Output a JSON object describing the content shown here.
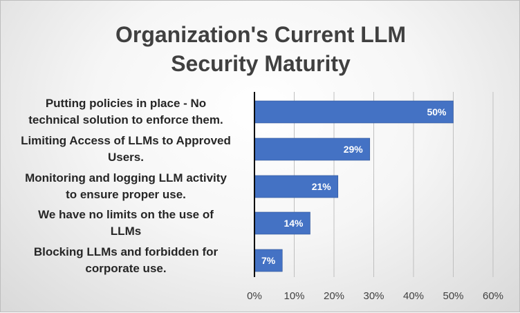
{
  "chart_data": {
    "type": "bar",
    "orientation": "horizontal",
    "title_lines": [
      "Organization's Current LLM",
      "Security Maturity"
    ],
    "categories": [
      [
        "Putting policies in place - No",
        "technical solution to enforce them."
      ],
      [
        "Limiting Access of LLMs to Approved",
        "Users."
      ],
      [
        "Monitoring and logging LLM activity",
        "to ensure proper use."
      ],
      [
        "We have no limits on the use of",
        "LLMs"
      ],
      [
        "Blocking LLMs and forbidden for",
        "corporate use."
      ]
    ],
    "values": [
      50,
      29,
      21,
      14,
      7
    ],
    "data_labels": [
      "50%",
      "29%",
      "21%",
      "14%",
      "7%"
    ],
    "x_ticks": [
      "0%",
      "10%",
      "20%",
      "30%",
      "40%",
      "50%",
      "60%"
    ],
    "xlim": [
      0,
      60
    ],
    "grid": true,
    "bar_color": "#4472C4"
  }
}
